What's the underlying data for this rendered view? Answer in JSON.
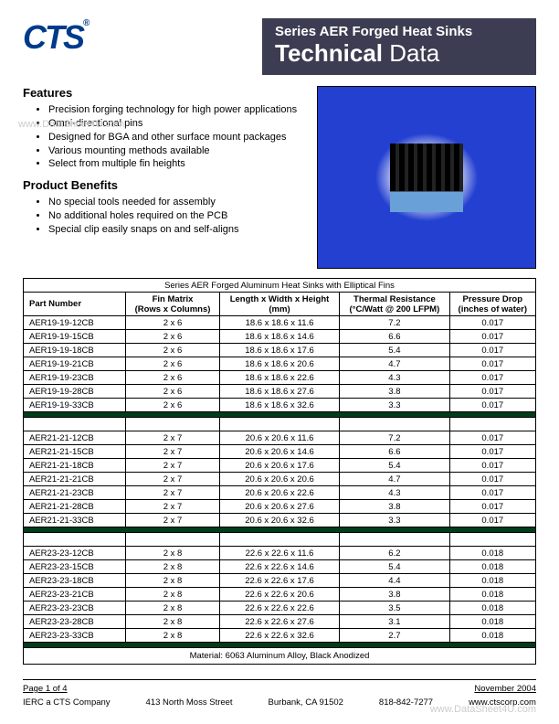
{
  "logo": {
    "text": "CTS",
    "suffix": "®"
  },
  "title": {
    "series": "Series AER Forged Heat Sinks",
    "main": "Technical",
    "sub": "Data"
  },
  "features": {
    "heading": "Features",
    "items": [
      "Precision forging technology for high power applications",
      "Omni-directional pins",
      "Designed for BGA and other surface mount packages",
      "Various mounting methods available",
      "Select from multiple fin heights"
    ]
  },
  "benefits": {
    "heading": "Product Benefits",
    "items": [
      "No special tools needed for assembly",
      "No additional holes required on the PCB",
      "Special clip easily snaps on and self-aligns"
    ]
  },
  "table": {
    "title": "Series AER Forged Aluminum Heat Sinks with Elliptical Fins",
    "columns": [
      "Part Number",
      "Fin Matrix (Rows x Columns)",
      "Length x Width x Height (mm)",
      "Thermal Resistance (°C/Watt @ 200 LFPM)",
      "Pressure Drop (inches of water)"
    ],
    "col_line1": [
      "Part Number",
      "Fin Matrix",
      "Length x Width x Height",
      "Thermal Resistance",
      "Pressure Drop"
    ],
    "col_line2": [
      "",
      "(Rows x Columns)",
      "(mm)",
      "(°C/Watt @ 200 LFPM)",
      "(inches of water)"
    ],
    "groups": [
      [
        [
          "AER19-19-12CB",
          "2 x 6",
          "18.6 x 18.6 x 11.6",
          "7.2",
          "0.017"
        ],
        [
          "AER19-19-15CB",
          "2 x 6",
          "18.6 x 18.6 x 14.6",
          "6.6",
          "0.017"
        ],
        [
          "AER19-19-18CB",
          "2 x 6",
          "18.6 x 18.6 x 17.6",
          "5.4",
          "0.017"
        ],
        [
          "AER19-19-21CB",
          "2 x 6",
          "18.6 x 18.6 x 20.6",
          "4.7",
          "0.017"
        ],
        [
          "AER19-19-23CB",
          "2 x 6",
          "18.6 x 18.6 x 22.6",
          "4.3",
          "0.017"
        ],
        [
          "AER19-19-28CB",
          "2 x 6",
          "18.6 x 18.6 x 27.6",
          "3.8",
          "0.017"
        ],
        [
          "AER19-19-33CB",
          "2 x 6",
          "18.6 x 18.6 x 32.6",
          "3.3",
          "0.017"
        ]
      ],
      [
        [
          "AER21-21-12CB",
          "2 x 7",
          "20.6 x 20.6 x 11.6",
          "7.2",
          "0.017"
        ],
        [
          "AER21-21-15CB",
          "2 x 7",
          "20.6 x 20.6 x 14.6",
          "6.6",
          "0.017"
        ],
        [
          "AER21-21-18CB",
          "2 x 7",
          "20.6 x 20.6 x 17.6",
          "5.4",
          "0.017"
        ],
        [
          "AER21-21-21CB",
          "2 x 7",
          "20.6 x 20.6 x 20.6",
          "4.7",
          "0.017"
        ],
        [
          "AER21-21-23CB",
          "2 x 7",
          "20.6 x 20.6 x 22.6",
          "4.3",
          "0.017"
        ],
        [
          "AER21-21-28CB",
          "2 x 7",
          "20.6 x 20.6 x 27.6",
          "3.8",
          "0.017"
        ],
        [
          "AER21-21-33CB",
          "2 x 7",
          "20.6 x 20.6 x 32.6",
          "3.3",
          "0.017"
        ]
      ],
      [
        [
          "AER23-23-12CB",
          "2 x 8",
          "22.6 x 22.6 x 11.6",
          "6.2",
          "0.018"
        ],
        [
          "AER23-23-15CB",
          "2 x 8",
          "22.6 x 22.6 x 14.6",
          "5.4",
          "0.018"
        ],
        [
          "AER23-23-18CB",
          "2 x 8",
          "22.6 x 22.6 x 17.6",
          "4.4",
          "0.018"
        ],
        [
          "AER23-23-21CB",
          "2 x 8",
          "22.6 x 22.6 x 20.6",
          "3.8",
          "0.018"
        ],
        [
          "AER23-23-23CB",
          "2 x 8",
          "22.6 x 22.6 x 22.6",
          "3.5",
          "0.018"
        ],
        [
          "AER23-23-28CB",
          "2 x 8",
          "22.6 x 22.6 x 27.6",
          "3.1",
          "0.018"
        ],
        [
          "AER23-23-33CB",
          "2 x 8",
          "22.6 x 22.6 x 32.6",
          "2.7",
          "0.018"
        ]
      ]
    ],
    "material": "Material:  6063 Aluminum Alloy, Black Anodized"
  },
  "footer": {
    "page": "Page 1 of 4",
    "date": "November 2004",
    "company": "IERC a CTS Company",
    "address": "413 North Moss Street",
    "city": "Burbank, CA  91502",
    "phone": "818-842-7277",
    "url": "www.ctscorp.com"
  },
  "watermark": "www.DataSheet4U.com",
  "colors": {
    "logo": "#003a8c",
    "title_bg": "#3c3c52",
    "image_bg": "#2440d0",
    "separator": "#003d1a"
  }
}
